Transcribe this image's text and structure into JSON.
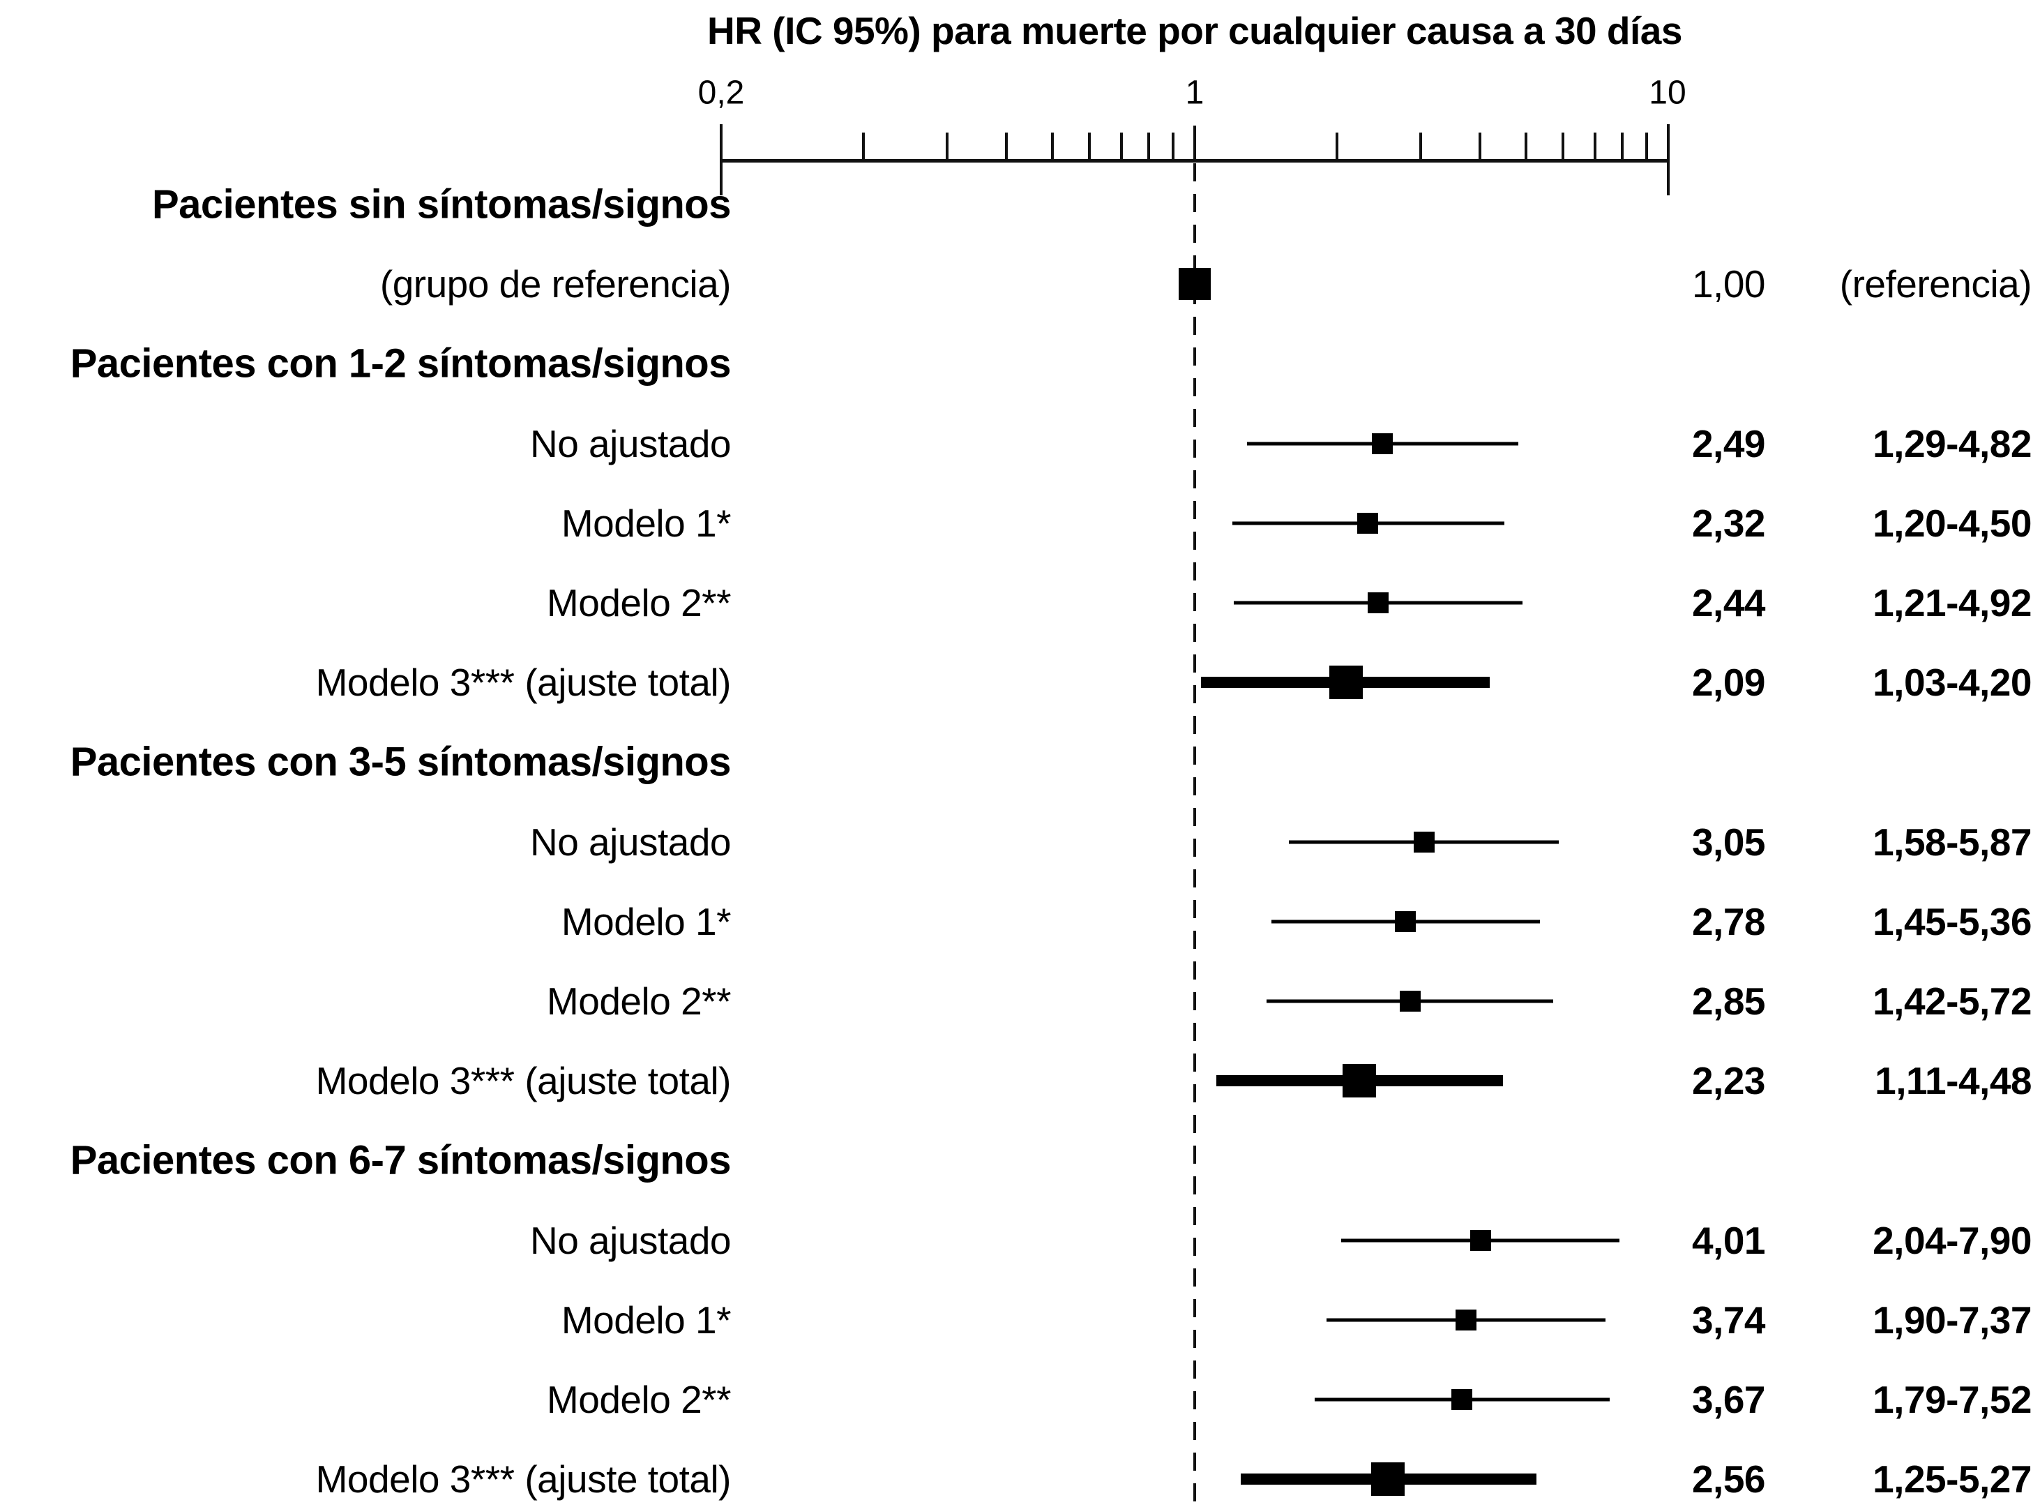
{
  "title": "HR (IC 95%) para muerte por cualquier causa a 30 días",
  "colors": {
    "ink": "#000000",
    "background": "#ffffff"
  },
  "axis": {
    "scale": "log10",
    "domain": [
      0.1,
      10
    ],
    "min_label": "0,2",
    "mid_label": "1",
    "max_label": "10",
    "minor_ticks": [
      0.2,
      0.3,
      0.4,
      0.5,
      0.6,
      0.7,
      0.8,
      0.9,
      2,
      3,
      4,
      5,
      6,
      7,
      8,
      9
    ],
    "reference_value": 1
  },
  "chart_data": {
    "type": "forest",
    "x_scale": "log10",
    "x_domain": [
      0.1,
      10
    ],
    "reference_line": 1,
    "title": "HR (IC 95%) para muerte por cualquier causa a 30 días",
    "groups": [
      {
        "header": "Pacientes sin síntomas/signos",
        "rows": [
          {
            "label": "(grupo de referencia)",
            "hr": 1.0,
            "ci": null,
            "hr_text": "1,00",
            "ci_text": "(referencia)",
            "style": "reference"
          }
        ]
      },
      {
        "header": "Pacientes con 1-2 síntomas/signos",
        "rows": [
          {
            "label": "No ajustado",
            "hr": 2.49,
            "ci": [
              1.29,
              4.82
            ],
            "hr_text": "2,49",
            "ci_text": "1,29-4,82",
            "style": "thin"
          },
          {
            "label": "Modelo 1*",
            "hr": 2.32,
            "ci": [
              1.2,
              4.5
            ],
            "hr_text": "2,32",
            "ci_text": "1,20-4,50",
            "style": "thin"
          },
          {
            "label": "Modelo 2**",
            "hr": 2.44,
            "ci": [
              1.21,
              4.92
            ],
            "hr_text": "2,44",
            "ci_text": "1,21-4,92",
            "style": "thin"
          },
          {
            "label": "Modelo 3*** (ajuste total)",
            "hr": 2.09,
            "ci": [
              1.03,
              4.2
            ],
            "hr_text": "2,09",
            "ci_text": "1,03-4,20",
            "style": "thick"
          }
        ]
      },
      {
        "header": "Pacientes con 3-5 síntomas/signos",
        "rows": [
          {
            "label": "No ajustado",
            "hr": 3.05,
            "ci": [
              1.58,
              5.87
            ],
            "hr_text": "3,05",
            "ci_text": "1,58-5,87",
            "style": "thin"
          },
          {
            "label": "Modelo 1*",
            "hr": 2.78,
            "ci": [
              1.45,
              5.36
            ],
            "hr_text": "2,78",
            "ci_text": "1,45-5,36",
            "style": "thin"
          },
          {
            "label": "Modelo 2**",
            "hr": 2.85,
            "ci": [
              1.42,
              5.72
            ],
            "hr_text": "2,85",
            "ci_text": "1,42-5,72",
            "style": "thin"
          },
          {
            "label": "Modelo 3*** (ajuste total)",
            "hr": 2.23,
            "ci": [
              1.11,
              4.48
            ],
            "hr_text": "2,23",
            "ci_text": "1,11-4,48",
            "style": "thick"
          }
        ]
      },
      {
        "header": "Pacientes con 6-7 síntomas/signos",
        "rows": [
          {
            "label": "No ajustado",
            "hr": 4.01,
            "ci": [
              2.04,
              7.9
            ],
            "hr_text": "4,01",
            "ci_text": "2,04-7,90",
            "style": "thin"
          },
          {
            "label": "Modelo 1*",
            "hr": 3.74,
            "ci": [
              1.9,
              7.37
            ],
            "hr_text": "3,74",
            "ci_text": "1,90-7,37",
            "style": "thin"
          },
          {
            "label": "Modelo 2**",
            "hr": 3.67,
            "ci": [
              1.79,
              7.52
            ],
            "hr_text": "3,67",
            "ci_text": "1,79-7,52",
            "style": "thin"
          },
          {
            "label": "Modelo 3*** (ajuste total)",
            "hr": 2.56,
            "ci": [
              1.25,
              5.27
            ],
            "hr_text": "2,56",
            "ci_text": "1,25-5,27",
            "style": "thick"
          }
        ]
      }
    ]
  }
}
